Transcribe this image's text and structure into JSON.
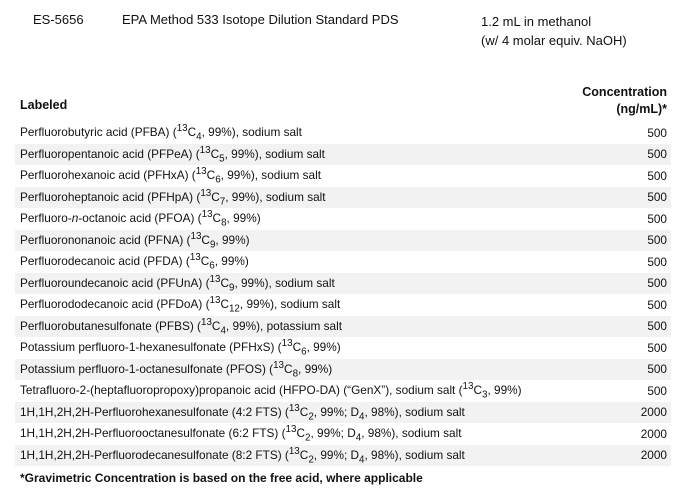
{
  "header": {
    "code": "ES-5656",
    "title": "EPA Method 533 Isotope Dilution Standard PDS",
    "formulation_line1": "1.2 mL in methanol",
    "formulation_line2": "(w/ 4 molar equiv. NaOH)"
  },
  "columns": {
    "labeled": "Labeled",
    "concentration_line1": "Concentration",
    "concentration_line2": "(ng/mL)*"
  },
  "rows": [
    {
      "html": "Perfluorobutyric acid (PFBA) (<sup>13</sup>C<sub>4</sub>, 99%), sodium salt",
      "value": "500"
    },
    {
      "html": "Perfluoropentanoic acid (PFPeA) (<sup>13</sup>C<sub>5</sub>, 99%), sodium salt",
      "value": "500"
    },
    {
      "html": "Perfluorohexanoic acid (PFHxA) (<sup>13</sup>C<sub>6</sub>, 99%), sodium salt",
      "value": "500"
    },
    {
      "html": "Perfluoroheptanoic acid (PFHpA) (<sup>13</sup>C<sub>7</sub>, 99%), sodium salt",
      "value": "500"
    },
    {
      "html": "Perfluoro-<i>n</i>-octanoic acid (PFOA) (<sup>13</sup>C<sub>8</sub>, 99%)",
      "value": "500"
    },
    {
      "html": "Perfluorononanoic acid (PFNA) (<sup>13</sup>C<sub>9</sub>, 99%)",
      "value": "500"
    },
    {
      "html": "Perfluorodecanoic acid (PFDA) (<sup>13</sup>C<sub>6</sub>, 99%)",
      "value": "500"
    },
    {
      "html": "Perfluoroundecanoic acid (PFUnA) (<sup>13</sup>C<sub>9</sub>, 99%), sodium salt",
      "value": "500"
    },
    {
      "html": "Perfluorododecanoic acid (PFDoA) (<sup>13</sup>C<sub>12</sub>, 99%), sodium salt",
      "value": "500"
    },
    {
      "html": "Perfluorobutanesulfonate (PFBS) (<sup>13</sup>C<sub>4</sub>, 99%), potassium salt",
      "value": "500"
    },
    {
      "html": "Potassium perfluoro-1-hexanesulfonate (PFHxS) (<sup>13</sup>C<sub>6</sub>, 99%)",
      "value": "500"
    },
    {
      "html": "Potassium perfluoro-1-octanesulfonate (PFOS) (<sup>13</sup>C<sub>8</sub>, 99%)",
      "value": "500"
    },
    {
      "html": "Tetrafluoro-2-(heptafluoropropoxy)propanoic acid (HFPO-DA) (“GenX”), sodium salt (<sup>13</sup>C<sub>3</sub>, 99%)",
      "value": "500"
    },
    {
      "html": "1H,1H,2H,2H-Perfluorohexanesulfonate (4:2 FTS) (<sup>13</sup>C<sub>2</sub>, 99%; D<sub>4</sub>, 98%), sodium salt",
      "value": "2000"
    },
    {
      "html": "1H,1H,2H,2H-Perfluorooctanesulfonate (6:2 FTS) (<sup>13</sup>C<sub>2</sub>, 99%; D<sub>4</sub>, 98%), sodium salt",
      "value": "2000"
    },
    {
      "html": "1H,1H,2H,2H-Perfluorodecanesulfonate (8:2 FTS) (<sup>13</sup>C<sub>2</sub>, 99%; D<sub>4</sub>, 98%), sodium salt",
      "value": "2000"
    }
  ],
  "footnote": "*Gravimetric Concentration is based on the free acid, where applicable"
}
